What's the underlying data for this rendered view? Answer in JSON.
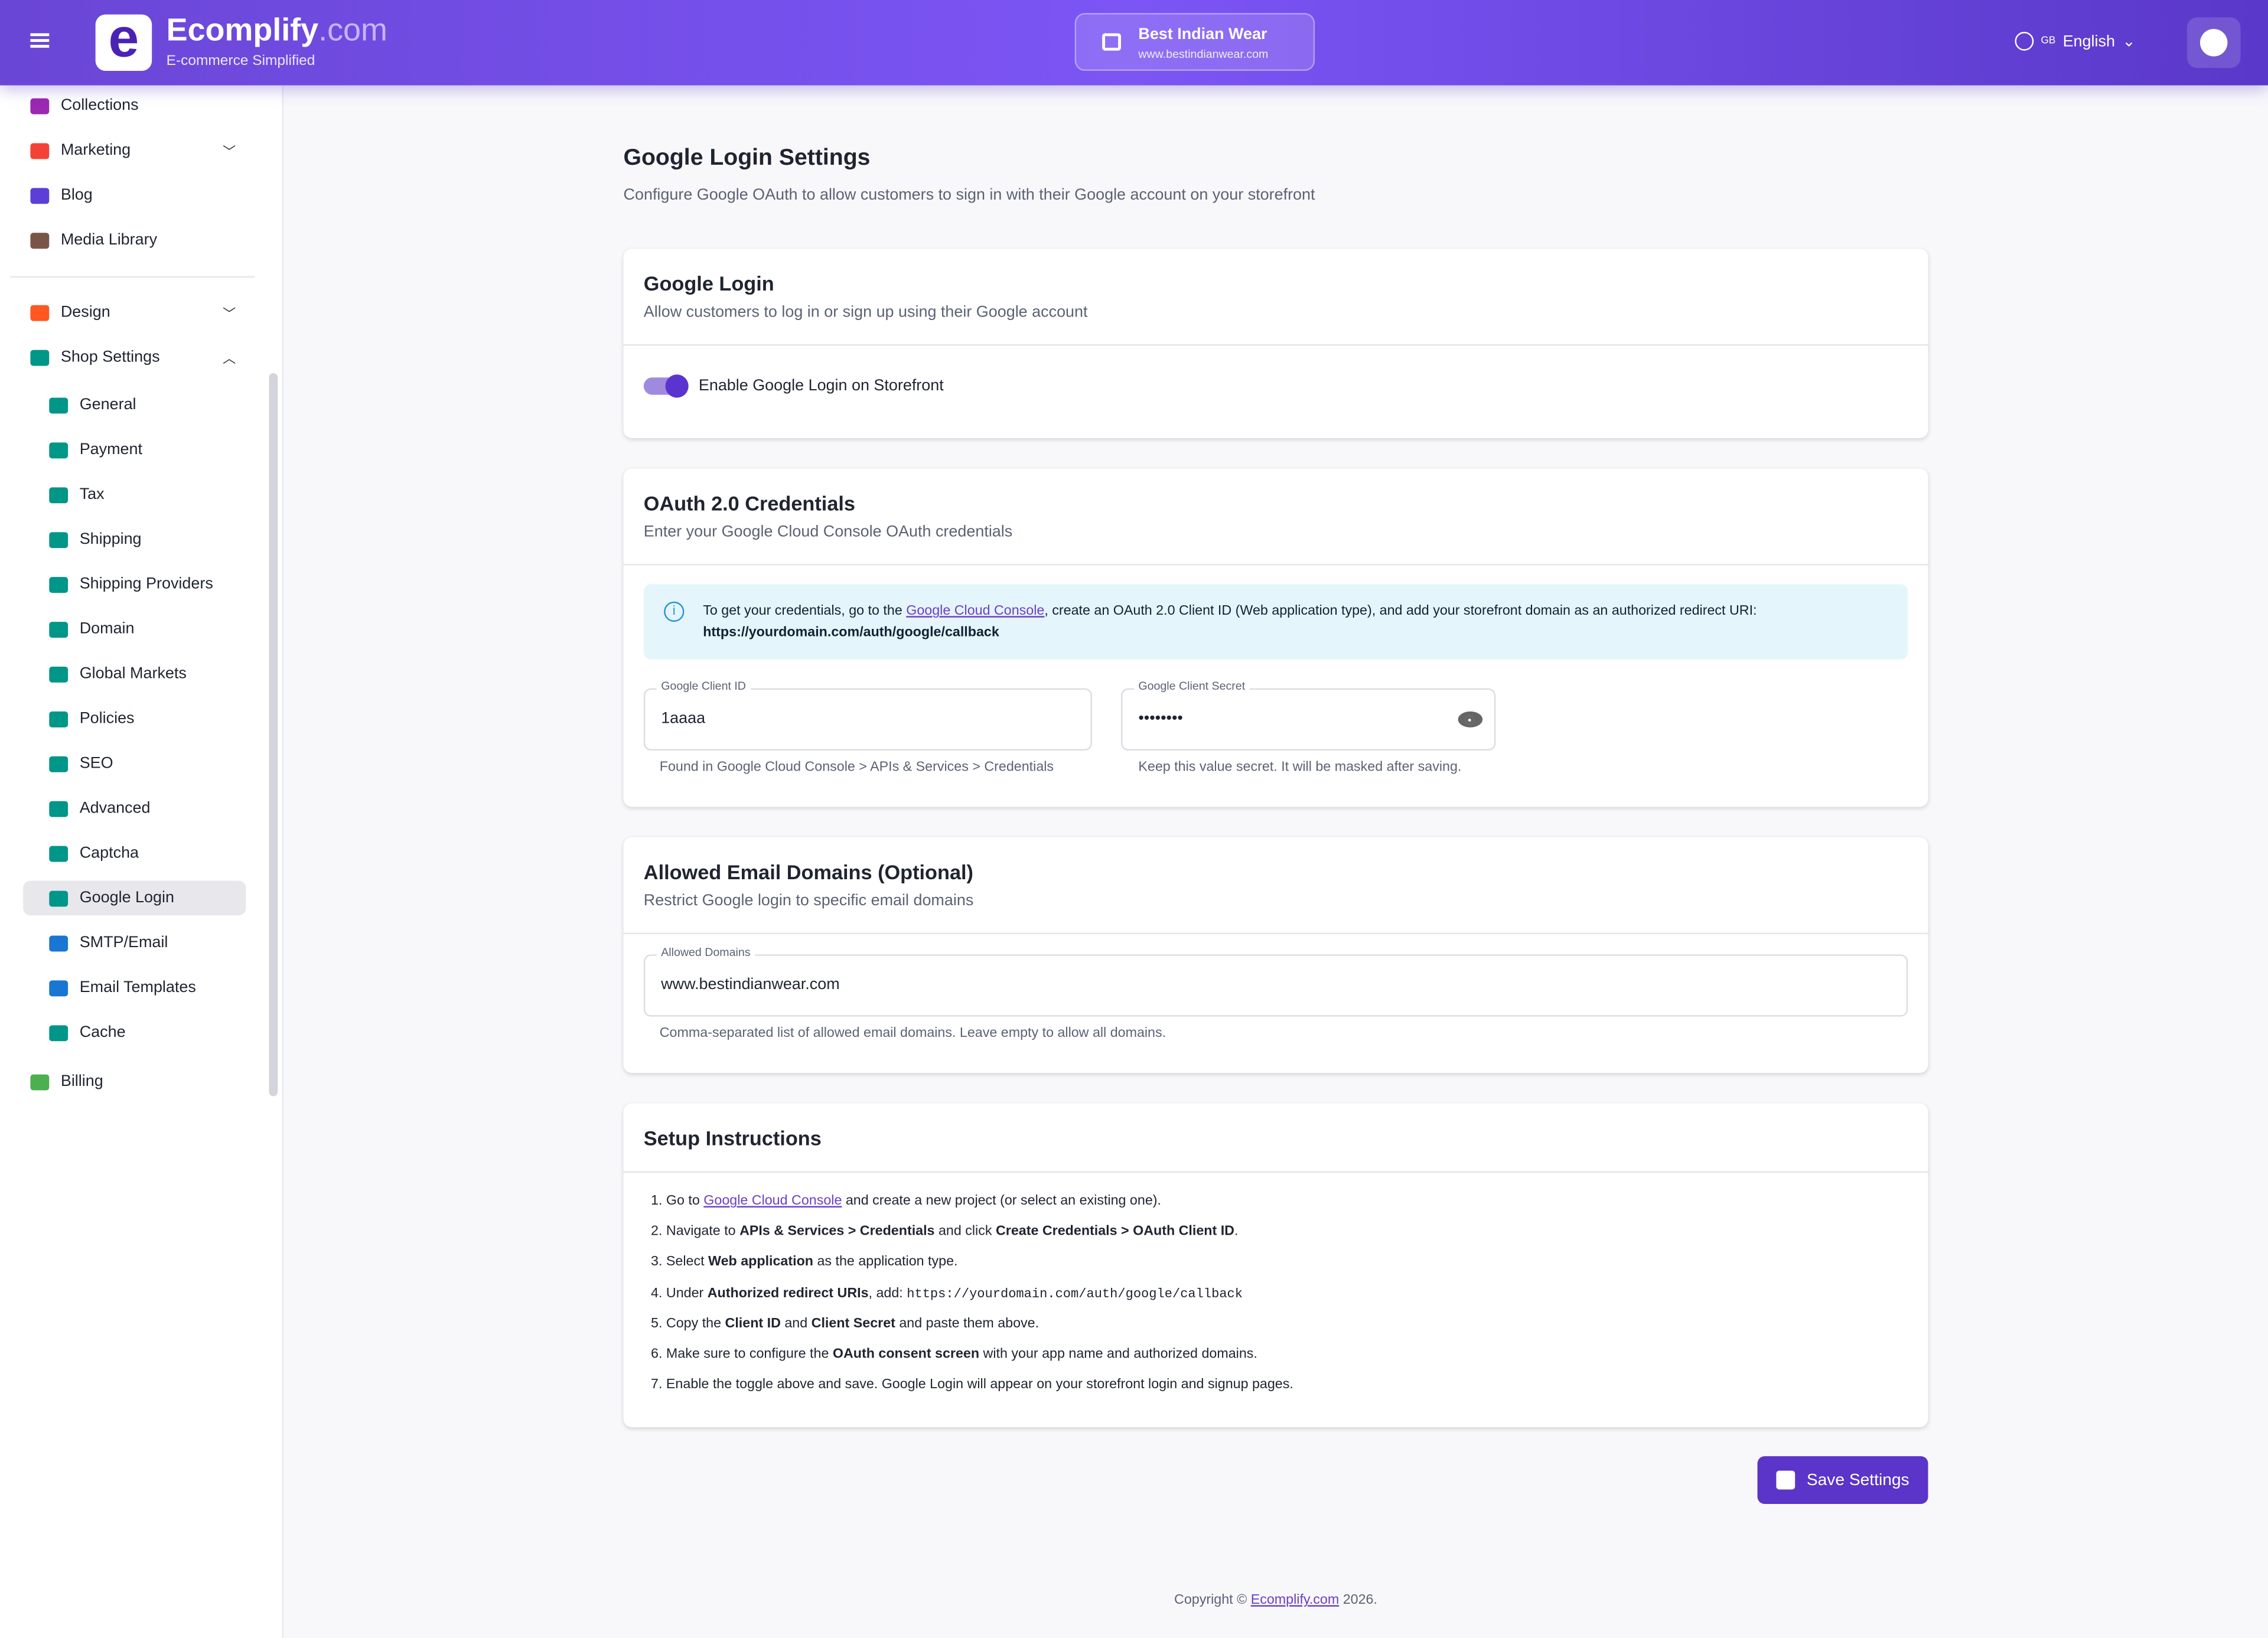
{
  "header": {
    "brand": "Ecomplify",
    "brand_suffix": ".com",
    "tagline": "E-commerce Simplified",
    "store_name": "Best Indian Wear",
    "store_url": "www.bestindianwear.com",
    "lang_flag": "GB",
    "language": "English"
  },
  "sidebar": {
    "items": [
      {
        "label": "Collections",
        "icon": "collections-icon",
        "color": "#9c27b0"
      },
      {
        "label": "Marketing",
        "icon": "megaphone-icon",
        "color": "#f44336",
        "chevron": "down"
      },
      {
        "label": "Blog",
        "icon": "blog-icon",
        "color": "#5c3fd6"
      },
      {
        "label": "Media Library",
        "icon": "image-icon",
        "color": "#795548"
      },
      {
        "label": "Design",
        "icon": "palette-icon",
        "color": "#ff5722",
        "chevron": "down"
      },
      {
        "label": "Shop Settings",
        "icon": "store-icon",
        "color": "#009688",
        "chevron": "up"
      }
    ],
    "sub_items": [
      {
        "label": "General",
        "icon": "pencil-icon"
      },
      {
        "label": "Payment",
        "icon": "card-icon"
      },
      {
        "label": "Tax",
        "icon": "receipt-icon"
      },
      {
        "label": "Shipping",
        "icon": "truck-icon"
      },
      {
        "label": "Shipping Providers",
        "icon": "truck-icon"
      },
      {
        "label": "Domain",
        "icon": "globe-icon"
      },
      {
        "label": "Global Markets",
        "icon": "bag-icon"
      },
      {
        "label": "Policies",
        "icon": "gavel-icon"
      },
      {
        "label": "SEO",
        "icon": "search-icon"
      },
      {
        "label": "Advanced",
        "icon": "gear-icon"
      },
      {
        "label": "Captcha",
        "icon": "robot-icon"
      },
      {
        "label": "Google Login",
        "icon": "link-icon",
        "active": true
      },
      {
        "label": "SMTP/Email",
        "icon": "email-icon",
        "color": "#1976d2"
      },
      {
        "label": "Email Templates",
        "icon": "email-icon",
        "color": "#1976d2"
      },
      {
        "label": "Cache",
        "icon": "sync-icon"
      }
    ],
    "billing": {
      "label": "Billing",
      "icon": "card-icon",
      "color": "#4caf50"
    },
    "sub_color": "#009688"
  },
  "page": {
    "title": "Google Login Settings",
    "subtitle": "Configure Google OAuth to allow customers to sign in with their Google account on your storefront"
  },
  "google_login": {
    "title": "Google Login",
    "subtitle": "Allow customers to log in or sign up using their Google account",
    "toggle_label": "Enable Google Login on Storefront",
    "enabled": true
  },
  "oauth": {
    "title": "OAuth 2.0 Credentials",
    "subtitle": "Enter your Google Cloud Console OAuth credentials",
    "info_pre": "To get your credentials, go to the ",
    "info_link": "Google Cloud Console",
    "info_post": ", create an OAuth 2.0 Client ID (Web application type), and add your storefront domain as an authorized redirect URI:",
    "info_url": "https://yourdomain.com/auth/google/callback",
    "client_id_label": "Google Client ID",
    "client_id_value": "1aaaa",
    "client_id_help": "Found in Google Cloud Console > APIs & Services > Credentials",
    "secret_label": "Google Client Secret",
    "secret_value": "••••••••",
    "secret_help": "Keep this value secret. It will be masked after saving."
  },
  "domains": {
    "title": "Allowed Email Domains (Optional)",
    "subtitle": "Restrict Google login to specific email domains",
    "label": "Allowed Domains",
    "value": "www.bestindianwear.com",
    "help": "Comma-separated list of allowed email domains. Leave empty to allow all domains."
  },
  "setup": {
    "title": "Setup Instructions",
    "steps": [
      [
        [
          "t",
          "1. Go to "
        ],
        [
          "a",
          "Google Cloud Console"
        ],
        [
          "t",
          " and create a new project (or select an existing one)."
        ]
      ],
      [
        [
          "t",
          "2. Navigate to "
        ],
        [
          "b",
          "APIs & Services > Credentials"
        ],
        [
          "t",
          " and click "
        ],
        [
          "b",
          "Create Credentials > OAuth Client ID"
        ],
        [
          "t",
          "."
        ]
      ],
      [
        [
          "t",
          "3. Select "
        ],
        [
          "b",
          "Web application"
        ],
        [
          "t",
          " as the application type."
        ]
      ],
      [
        [
          "t",
          "4. Under "
        ],
        [
          "b",
          "Authorized redirect URIs"
        ],
        [
          "t",
          ", add: "
        ],
        [
          "c",
          "https://yourdomain.com/auth/google/callback"
        ]
      ],
      [
        [
          "t",
          "5. Copy the "
        ],
        [
          "b",
          "Client ID"
        ],
        [
          "t",
          " and "
        ],
        [
          "b",
          "Client Secret"
        ],
        [
          "t",
          " and paste them above."
        ]
      ],
      [
        [
          "t",
          "6. Make sure to configure the "
        ],
        [
          "b",
          "OAuth consent screen"
        ],
        [
          "t",
          " with your app name and authorized domains."
        ]
      ],
      [
        [
          "t",
          "7. Enable the toggle above and save. Google Login will appear on your storefront login and signup pages."
        ]
      ]
    ]
  },
  "save_label": "Save Settings",
  "footer": {
    "pre": "Copyright © ",
    "link": "Ecomplify.com",
    "post": " 2026."
  }
}
